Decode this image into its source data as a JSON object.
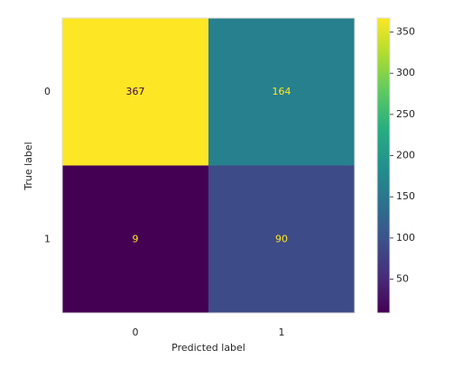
{
  "chart_data": {
    "type": "heatmap",
    "x_categories": [
      "0",
      "1"
    ],
    "y_categories": [
      "0",
      "1"
    ],
    "values": [
      [
        367,
        164
      ],
      [
        9,
        90
      ]
    ],
    "xlabel": "Predicted label",
    "ylabel": "True label",
    "colormap": "viridis",
    "clim": [
      9,
      367
    ],
    "cticks": [
      50,
      100,
      150,
      200,
      250,
      300,
      350
    ]
  }
}
